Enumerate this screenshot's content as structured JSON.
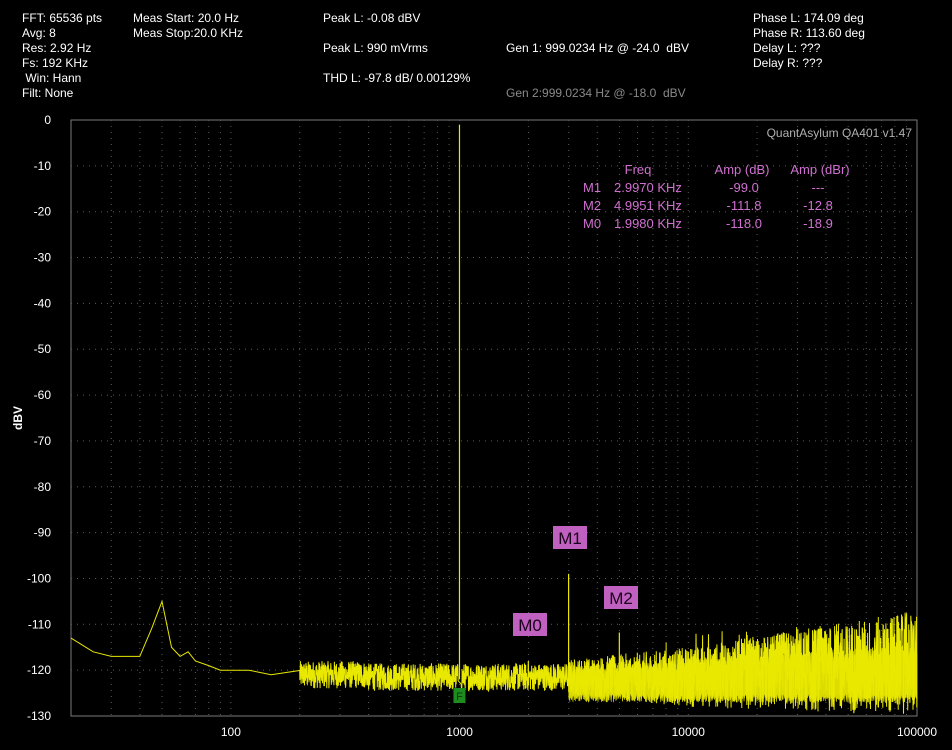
{
  "header": {
    "col1": [
      "FFT: 65536 pts",
      "Avg: 8",
      "Res: 2.92 Hz",
      "Fs: 192 KHz",
      " Win: Hann",
      "Filt: None"
    ],
    "col2": [
      "Meas Start: 20.0 Hz",
      "Meas Stop:20.0 KHz"
    ],
    "col3": [
      "Peak L: -0.08 dBV",
      "",
      "Peak L: 990 mVrms",
      "",
      "THD L: -97.8 dB/ 0.00129%"
    ],
    "gen1": "Gen 1: 999.0234 Hz @ -24.0  dBV",
    "gen2": "Gen 2:999.0234 Hz @ -18.0  dBV",
    "col5": [
      "Phase L: 174.09 deg",
      "Phase R: 113.60 deg",
      "Delay L: ???",
      "Delay R: ???"
    ]
  },
  "watermark": "QuantAsylum QA401 v1.47",
  "marker_table": {
    "headers": [
      "Freq",
      "Amp (dB)",
      "Amp (dBr)"
    ],
    "rows": [
      {
        "name": "M1",
        "freq": "2.9970 KHz",
        "amp": "-99.0",
        "ampr": "---"
      },
      {
        "name": "M2",
        "freq": "4.9951 KHz",
        "amp": "-111.8",
        "ampr": "-12.8"
      },
      {
        "name": "M0",
        "freq": "1.9980 KHz",
        "amp": "-118.0",
        "ampr": "-18.9"
      }
    ]
  },
  "colors": {
    "trace": "#e8e800",
    "marker": "#c060c0",
    "marker_text": "#d070d0",
    "fund_marker": "#1e8c1e",
    "grid": "#5a5a5a"
  },
  "chart_data": {
    "type": "line",
    "x_scale": "log",
    "xlim": [
      20,
      100000
    ],
    "ylim": [
      -130,
      0
    ],
    "ylabel": "dBV",
    "xlabel": "",
    "x_ticks": [
      100,
      1000,
      10000,
      100000
    ],
    "x_tick_labels": [
      "100",
      "1000",
      "10000",
      "100000"
    ],
    "y_ticks": [
      0,
      -10,
      -20,
      -30,
      -40,
      -50,
      -60,
      -70,
      -80,
      -90,
      -100,
      -110,
      -120,
      -130
    ],
    "grid": true,
    "series": [
      {
        "values_note": "",
        "x": [
          20,
          25,
          30,
          40,
          45,
          50,
          55,
          60,
          65,
          70,
          80,
          90,
          100,
          120,
          150,
          200,
          300,
          500,
          800,
          950,
          995,
          999,
          1003,
          1050,
          1200,
          1500,
          1998,
          2500,
          2997,
          3500,
          4000,
          4995,
          6000,
          7000,
          9000,
          12000,
          15000,
          20000,
          30000,
          50000,
          70000,
          90000,
          100000
        ],
        "y": [
          -113,
          -116,
          -117,
          -117,
          -111,
          -105,
          -115,
          -117,
          -116,
          -118,
          -119,
          -120,
          -120,
          -120,
          -121,
          -121,
          -122,
          -122,
          -122,
          -122,
          -121,
          -1,
          -121,
          -122,
          -122,
          -122,
          -118,
          -122,
          -99,
          -122,
          -121,
          -111.8,
          -121,
          -120,
          -121,
          -121,
          -120,
          -120,
          -120,
          -120,
          -119,
          -119,
          -118
        ]
      }
    ],
    "markers": [
      {
        "name": "F",
        "x": 999,
        "y": -128
      },
      {
        "name": "M1",
        "x": 2997,
        "y": -99.0
      },
      {
        "name": "M2",
        "x": 4995,
        "y": -111.8
      },
      {
        "name": "M0",
        "x": 1998,
        "y": -118.0
      }
    ]
  }
}
